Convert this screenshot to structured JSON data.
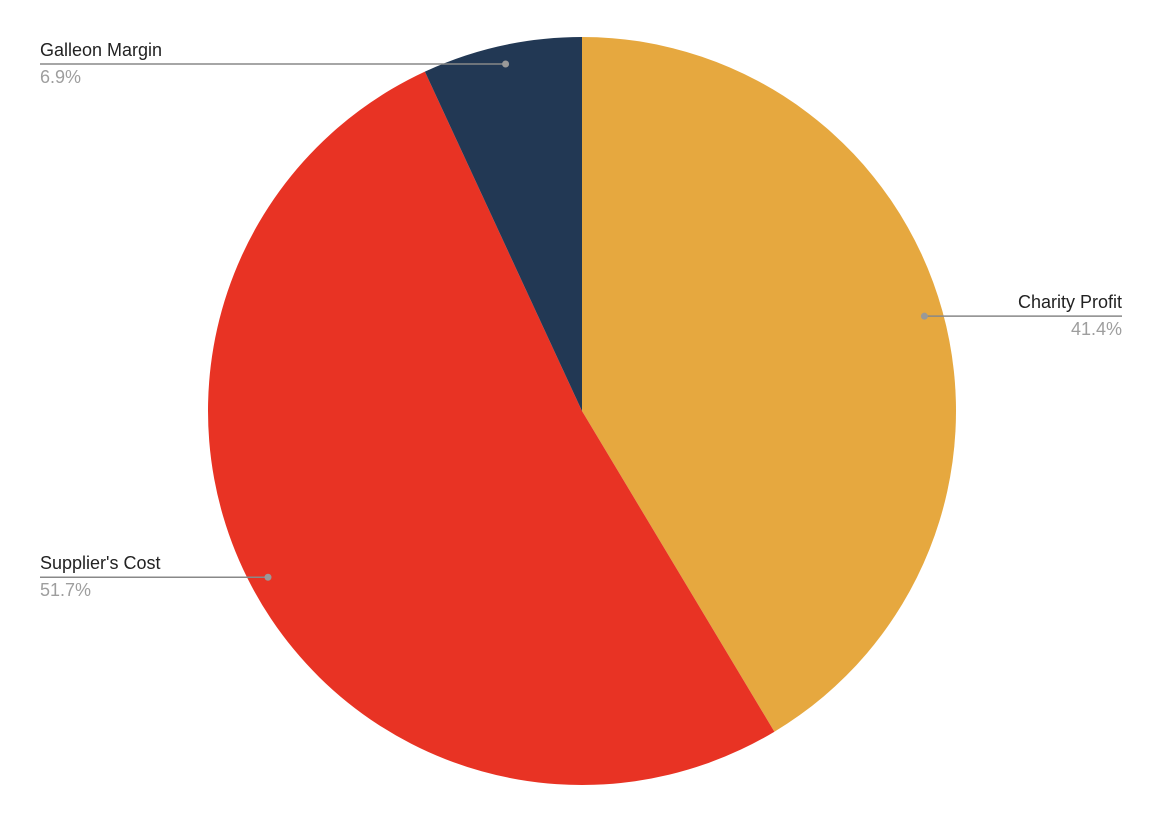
{
  "chart_data": {
    "type": "pie",
    "categories": [
      "Charity Profit",
      "Supplier's Cost",
      "Galleon Margin"
    ],
    "values": [
      41.4,
      51.7,
      6.9
    ],
    "value_labels": [
      "41.4%",
      "51.7%",
      "6.9%"
    ],
    "colors": [
      "#e6a83f",
      "#e83324",
      "#223854"
    ]
  }
}
